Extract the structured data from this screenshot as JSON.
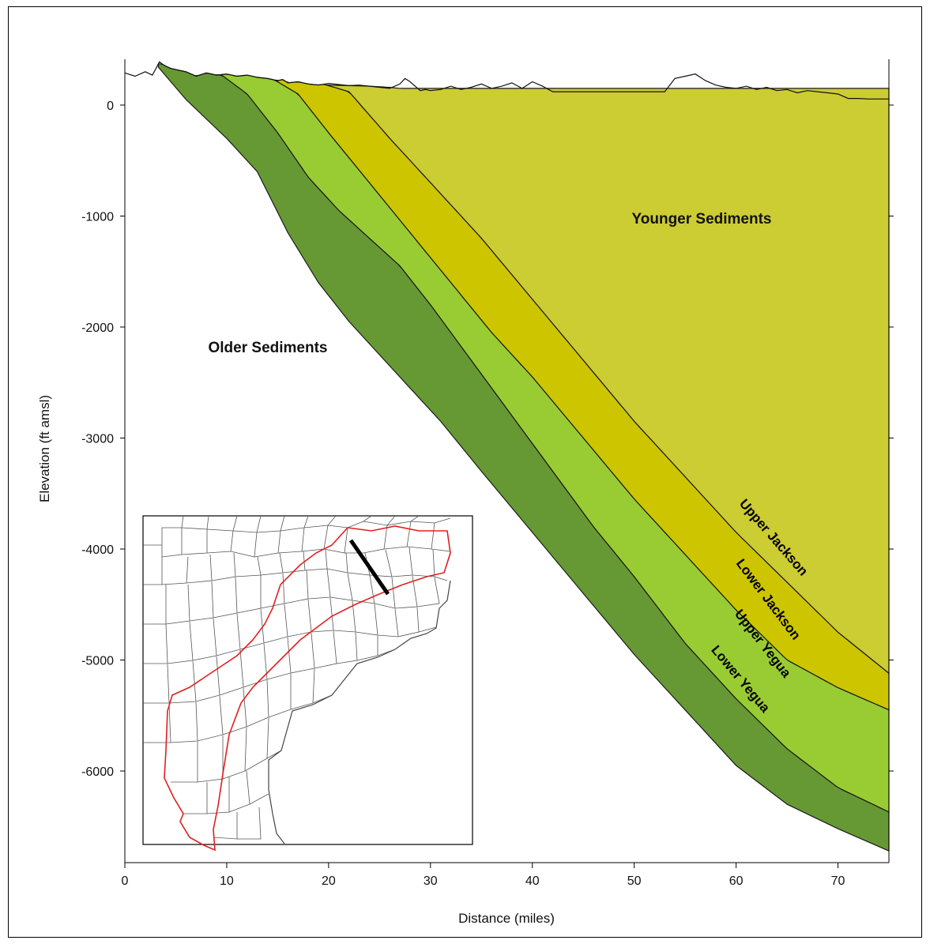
{
  "chart_data": {
    "type": "area",
    "title": "",
    "xlabel": "Distance (miles)",
    "ylabel": "Elevation (ft amsl)",
    "xlim": [
      0,
      75
    ],
    "ylim": [
      -6800,
      400
    ],
    "xticks": [
      0,
      10,
      20,
      30,
      40,
      50,
      60,
      70
    ],
    "yticks": [
      0,
      -1000,
      -2000,
      -3000,
      -4000,
      -5000,
      -6000
    ],
    "grid": false,
    "region_labels": [
      "Younger Sediments",
      "Older Sediments"
    ],
    "ground_surface": {
      "x": [
        0,
        1,
        2,
        2.7,
        3,
        3.4,
        3.8,
        4.5,
        6,
        7,
        8,
        9,
        10,
        11,
        12,
        13,
        14,
        15,
        15.5,
        16,
        17,
        18,
        19,
        20,
        21,
        22,
        23,
        24,
        25,
        26,
        27,
        27.5,
        28,
        29,
        29.5,
        30,
        31,
        32,
        33,
        34,
        35,
        36,
        37,
        38,
        39,
        40,
        41,
        42,
        44,
        46,
        48,
        50,
        52,
        53,
        54,
        55,
        56,
        57,
        58,
        59,
        60,
        61,
        62,
        63,
        64,
        65,
        66,
        67,
        68,
        69,
        70,
        71,
        72,
        73,
        74,
        75
      ],
      "y": [
        290,
        260,
        300,
        270,
        320,
        390,
        360,
        330,
        300,
        260,
        290,
        270,
        280,
        260,
        270,
        250,
        240,
        220,
        230,
        200,
        210,
        190,
        180,
        195,
        185,
        175,
        180,
        170,
        160,
        150,
        190,
        240,
        210,
        130,
        140,
        130,
        140,
        170,
        140,
        160,
        190,
        150,
        170,
        200,
        150,
        210,
        170,
        120,
        120,
        120,
        120,
        120,
        120,
        120,
        240,
        260,
        280,
        220,
        180,
        160,
        150,
        170,
        140,
        160,
        130,
        140,
        110,
        130,
        120,
        110,
        100,
        60,
        60,
        55,
        55,
        55
      ]
    },
    "series": [
      {
        "name": "Upper Jackson",
        "color": "#cccc33",
        "top": {
          "x": [
            8,
            14,
            20,
            22,
            24,
            26,
            27
          ],
          "y": [
            230,
            200,
            180,
            175,
            170,
            160,
            150
          ]
        },
        "base": {
          "x": [
            19.8,
            22,
            26,
            30,
            35,
            40,
            45,
            50,
            55,
            60,
            65,
            70,
            75
          ],
          "y": [
            180,
            120,
            -300,
            -700,
            -1200,
            -1750,
            -2300,
            -2850,
            -3350,
            -3850,
            -4300,
            -4750,
            -5120
          ]
        }
      },
      {
        "name": "Lower Jackson",
        "color": "#cdc500",
        "top": {
          "x": [
            19.8,
            22,
            26,
            30,
            35,
            40,
            45,
            50,
            55,
            60,
            65,
            70,
            75
          ],
          "y": [
            180,
            120,
            -300,
            -700,
            -1200,
            -1750,
            -2300,
            -2850,
            -3350,
            -3850,
            -4300,
            -4750,
            -5120
          ]
        },
        "base": {
          "x": [
            14.8,
            17,
            20,
            24,
            28,
            32,
            36,
            40,
            45,
            50,
            55,
            60,
            65,
            70,
            75
          ],
          "y": [
            220,
            100,
            -250,
            -700,
            -1150,
            -1600,
            -2050,
            -2450,
            -3000,
            -3550,
            -4050,
            -4550,
            -5000,
            -5250,
            -5450
          ]
        }
      },
      {
        "name": "Upper Yegua",
        "color": "#99cc33",
        "top": {
          "x": [
            14.8,
            17,
            20,
            24,
            28,
            32,
            36,
            40,
            45,
            50,
            55,
            60,
            65,
            70,
            75
          ],
          "y": [
            220,
            100,
            -250,
            -700,
            -1150,
            -1600,
            -2050,
            -2450,
            -3000,
            -3550,
            -4050,
            -4550,
            -5000,
            -5250,
            -5450
          ]
        },
        "base": {
          "x": [
            9.5,
            12,
            15,
            18,
            21,
            24,
            27,
            30,
            34,
            38,
            42,
            46,
            50,
            55,
            60,
            65,
            70,
            75
          ],
          "y": [
            270,
            100,
            -250,
            -650,
            -950,
            -1200,
            -1450,
            -1800,
            -2300,
            -2800,
            -3300,
            -3800,
            -4250,
            -4850,
            -5350,
            -5800,
            -6150,
            -6370
          ]
        }
      },
      {
        "name": "Lower Yegua",
        "color": "#669933",
        "top": {
          "x": [
            9.5,
            12,
            15,
            18,
            21,
            24,
            27,
            30,
            34,
            38,
            42,
            46,
            50,
            55,
            60,
            65,
            70,
            75
          ],
          "y": [
            270,
            100,
            -250,
            -650,
            -950,
            -1200,
            -1450,
            -1800,
            -2300,
            -2800,
            -3300,
            -3800,
            -4250,
            -4850,
            -5350,
            -5800,
            -6150,
            -6370
          ]
        },
        "base": {
          "x": [
            3.3,
            6,
            10,
            13,
            16,
            19,
            22,
            25,
            28,
            31,
            35,
            40,
            45,
            50,
            55,
            60,
            65,
            70,
            75
          ],
          "y": [
            340,
            50,
            -300,
            -600,
            -1150,
            -1600,
            -1950,
            -2250,
            -2550,
            -2850,
            -3300,
            -3850,
            -4400,
            -4950,
            -5450,
            -5950,
            -6300,
            -6520,
            -6720
          ]
        }
      }
    ]
  },
  "inset_map": {
    "description_label": "",
    "outline_color": "#e02020",
    "section_line_color": "#000000"
  }
}
